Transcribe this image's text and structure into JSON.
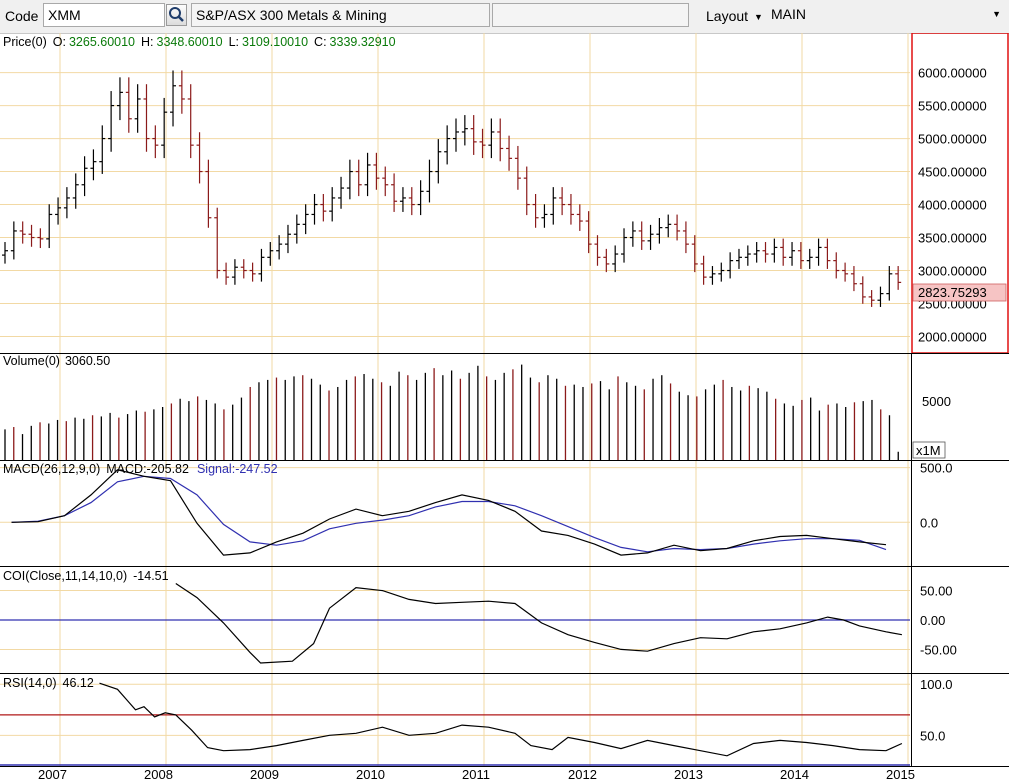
{
  "toolbar": {
    "code_label": "Code",
    "code_value": "XMM",
    "security_name": "S&P/ASX 300 Metals & Mining",
    "extra_field": "",
    "layout_label": "Layout",
    "layout_value": "MAIN"
  },
  "colors": {
    "grid": "#f2d9a4",
    "up_bar": "#000000",
    "down_bar": "#8b1a1a",
    "signal_line": "#3030b0",
    "rsi_overbought": "#b01818",
    "price_scale_border": "#e01010",
    "last_price_bg": "#f6c4c4"
  },
  "chart_data": [
    {
      "type": "ohlc",
      "panel": "price",
      "label": "Price(0)",
      "open_label": "O:",
      "open": "3265.60010",
      "high_label": "H:",
      "high": "3348.60010",
      "low_label": "L:",
      "low": "3109.10010",
      "close_label": "C:",
      "close": "3339.32910",
      "last_price": "2823.75293",
      "y_ticks": [
        "6000.00000",
        "5500.00000",
        "5000.00000",
        "4500.00000",
        "4000.00000",
        "3500.00000",
        "3000.00000",
        "2500.00000",
        "2000.00000"
      ],
      "x_ticks": [
        "2007",
        "2008",
        "2009",
        "2010",
        "2011",
        "2012",
        "2013",
        "2014",
        "2015"
      ],
      "ylim": [
        1750,
        6600
      ],
      "x_start": 2006.75,
      "close_series": [
        3300,
        3600,
        3550,
        3500,
        3480,
        3850,
        3950,
        4100,
        4300,
        4550,
        4650,
        5000,
        5500,
        5700,
        5300,
        5600,
        5000,
        4900,
        5400,
        5800,
        5600,
        4900,
        4500,
        3800,
        3000,
        2900,
        3050,
        3000,
        2950,
        3200,
        3300,
        3400,
        3550,
        3700,
        3850,
        4000,
        3900,
        4100,
        4250,
        4500,
        4300,
        4600,
        4400,
        4300,
        4050,
        4100,
        4000,
        4200,
        4500,
        4800,
        5000,
        5100,
        5150,
        4950,
        4900,
        5100,
        4850,
        4700,
        4400,
        4000,
        3800,
        3850,
        4100,
        4000,
        3850,
        3750,
        3400,
        3200,
        3100,
        3250,
        3500,
        3600,
        3450,
        3550,
        3650,
        3700,
        3600,
        3400,
        3100,
        2900,
        2950,
        3000,
        3150,
        3200,
        3250,
        3300,
        3250,
        3350,
        3200,
        3300,
        3150,
        3200,
        3350,
        3150,
        3000,
        2950,
        2800,
        2600,
        2550,
        2650,
        2950,
        2820
      ]
    },
    {
      "type": "bar",
      "panel": "volume",
      "label": "Volume(0)",
      "value": "3060.50",
      "y_ticks": [
        "5000"
      ],
      "scale_label": "x1M",
      "ylim": [
        0,
        9000
      ],
      "values": [
        2600,
        2800,
        2200,
        2900,
        3200,
        3100,
        3400,
        3300,
        3600,
        3500,
        3800,
        3700,
        4000,
        3600,
        3900,
        4200,
        4100,
        4300,
        4500,
        4800,
        5200,
        5000,
        5400,
        5100,
        4800,
        4300,
        4700,
        5300,
        6200,
        6600,
        6800,
        7000,
        6800,
        7100,
        7200,
        6900,
        6400,
        5900,
        6200,
        6800,
        7100,
        7300,
        6900,
        6600,
        6300,
        7500,
        7200,
        6800,
        7400,
        7800,
        7200,
        7600,
        6900,
        7400,
        8000,
        7100,
        6800,
        7400,
        7700,
        8100,
        7000,
        6600,
        7200,
        6900,
        6300,
        6400,
        6200,
        6500,
        6700,
        6000,
        7100,
        6600,
        6300,
        6000,
        6900,
        7200,
        6500,
        5800,
        5500,
        5400,
        6000,
        6400,
        6800,
        6200,
        5900,
        6300,
        6100,
        5800,
        5200,
        4800,
        4600,
        5100,
        5300,
        4200,
        4700,
        4800,
        4500,
        4900,
        5000,
        5100,
        4300,
        3800,
        700
      ]
    },
    {
      "type": "line",
      "panel": "macd",
      "label": "MACD(26,12,9,0)",
      "macd_label": "MACD:",
      "macd_value": "-205.82",
      "signal_label": "Signal:",
      "signal_value": "-247.52",
      "y_ticks": [
        "500.0",
        "0.0"
      ],
      "ylim": [
        -400,
        560
      ],
      "series": [
        {
          "name": "MACD",
          "x": [
            2006.75,
            2007.0,
            2007.25,
            2007.5,
            2007.75,
            2008.0,
            2008.25,
            2008.5,
            2008.75,
            2009.0,
            2009.25,
            2009.5,
            2009.75,
            2010.0,
            2010.25,
            2010.5,
            2010.75,
            2011.0,
            2011.25,
            2011.5,
            2011.75,
            2012.0,
            2012.25,
            2012.5,
            2012.75,
            2013.0,
            2013.25,
            2013.5,
            2013.75,
            2014.0,
            2014.25,
            2014.5,
            2014.75,
            2015.0
          ],
          "values": [
            0,
            5,
            60,
            250,
            480,
            420,
            380,
            -10,
            -300,
            -280,
            -180,
            -100,
            30,
            120,
            60,
            100,
            180,
            250,
            200,
            100,
            -80,
            -120,
            -200,
            -300,
            -280,
            -210,
            -260,
            -240,
            -170,
            -130,
            -120,
            -150,
            -180,
            -205
          ]
        },
        {
          "name": "Signal",
          "x": [
            2006.75,
            2007.0,
            2007.25,
            2007.5,
            2007.75,
            2008.0,
            2008.25,
            2008.5,
            2008.75,
            2009.0,
            2009.25,
            2009.5,
            2009.75,
            2010.0,
            2010.25,
            2010.5,
            2010.75,
            2011.0,
            2011.25,
            2011.5,
            2011.75,
            2012.0,
            2012.25,
            2012.5,
            2012.75,
            2013.0,
            2013.25,
            2013.5,
            2013.75,
            2014.0,
            2014.25,
            2014.5,
            2014.75,
            2015.0
          ],
          "values": [
            0,
            10,
            60,
            180,
            370,
            420,
            400,
            250,
            -20,
            -180,
            -210,
            -170,
            -60,
            -10,
            20,
            60,
            140,
            190,
            190,
            150,
            60,
            -40,
            -140,
            -230,
            -270,
            -240,
            -250,
            -240,
            -200,
            -170,
            -150,
            -150,
            -165,
            -250
          ]
        }
      ]
    },
    {
      "type": "line",
      "panel": "coi",
      "label": "COI(Close,11,14,10,0)",
      "value": "-14.51",
      "y_ticks": [
        "50.00",
        "0.00",
        "-50.00"
      ],
      "ylim": [
        -90,
        90
      ],
      "series": [
        {
          "name": "COI",
          "x": [
            2008.3,
            2008.5,
            2008.75,
            2009.0,
            2009.1,
            2009.4,
            2009.6,
            2009.75,
            2010.0,
            2010.25,
            2010.5,
            2010.75,
            2011.0,
            2011.25,
            2011.5,
            2011.75,
            2012.0,
            2012.25,
            2012.5,
            2012.75,
            2013.0,
            2013.25,
            2013.5,
            2013.75,
            2014.0,
            2014.25,
            2014.45,
            2014.6,
            2014.75,
            2015.0,
            2015.15
          ],
          "values": [
            62,
            38,
            -5,
            -55,
            -73,
            -70,
            -40,
            20,
            55,
            50,
            35,
            28,
            30,
            32,
            28,
            -5,
            -25,
            -38,
            -50,
            -53,
            -40,
            -30,
            -32,
            -20,
            -15,
            -5,
            5,
            0,
            -10,
            -20,
            -25
          ]
        }
      ],
      "ref_line": 0
    },
    {
      "type": "line",
      "panel": "rsi",
      "label": "RSI(14,0)",
      "value": "46.12",
      "y_ticks": [
        "100.0",
        "50.0"
      ],
      "ylim": [
        20,
        110
      ],
      "overbought": 70,
      "series": [
        {
          "name": "RSI",
          "x": [
            2007.58,
            2007.75,
            2007.92,
            2008.0,
            2008.1,
            2008.2,
            2008.3,
            2008.45,
            2008.6,
            2008.75,
            2009.0,
            2009.25,
            2009.5,
            2009.75,
            2010.0,
            2010.25,
            2010.5,
            2010.75,
            2011.0,
            2011.25,
            2011.5,
            2011.65,
            2011.85,
            2012.0,
            2012.25,
            2012.5,
            2012.75,
            2013.0,
            2013.25,
            2013.5,
            2013.75,
            2014.0,
            2014.25,
            2014.5,
            2014.75,
            2015.0,
            2015.15
          ],
          "values": [
            101,
            95,
            75,
            78,
            68,
            72,
            70,
            55,
            38,
            35,
            36,
            40,
            45,
            50,
            52,
            58,
            50,
            52,
            60,
            58,
            52,
            40,
            36,
            48,
            43,
            37,
            45,
            40,
            35,
            30,
            42,
            45,
            43,
            40,
            36,
            35,
            42
          ]
        }
      ]
    }
  ]
}
